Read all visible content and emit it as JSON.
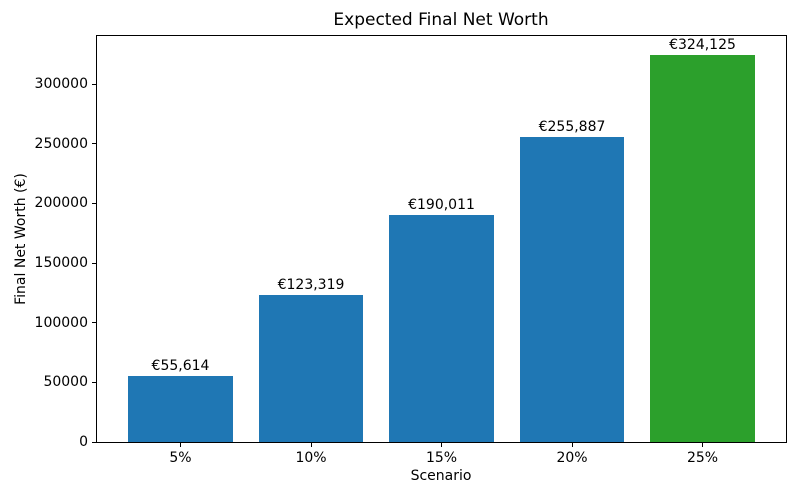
{
  "chart_data": {
    "type": "bar",
    "title": "Expected Final Net Worth",
    "xlabel": "Scenario",
    "ylabel": "Final Net Worth (€)",
    "categories": [
      "5%",
      "10%",
      "15%",
      "20%",
      "25%"
    ],
    "values": [
      55614,
      123319,
      190011,
      255887,
      324125
    ],
    "value_labels": [
      "€55,614",
      "€123,319",
      "€190,011",
      "€255,887",
      "€324,125"
    ],
    "bar_colors": [
      "#1f77b4",
      "#1f77b4",
      "#1f77b4",
      "#1f77b4",
      "#2ca02c"
    ],
    "ylim": [
      0,
      340331
    ],
    "yticks": [
      0,
      50000,
      100000,
      150000,
      200000,
      250000,
      300000
    ],
    "grid": false,
    "legend": "none"
  }
}
